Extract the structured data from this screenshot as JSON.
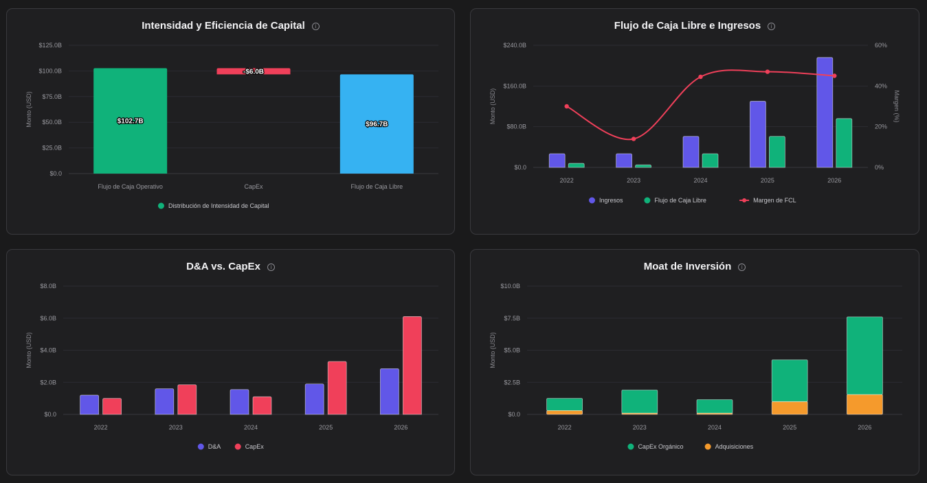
{
  "panels": [
    {
      "title": "Intensidad y Eficiencia de Capital",
      "info_icon": "info-icon"
    },
    {
      "title": "Flujo de Caja Libre e Ingresos",
      "info_icon": "info-icon"
    },
    {
      "title": "D&A vs. CapEx",
      "info_icon": "info-icon"
    },
    {
      "title": "Moat de Inversión",
      "info_icon": "info-icon"
    }
  ],
  "chart_data": [
    {
      "type": "bar",
      "subtype": "waterfall",
      "title": "Intensidad y Eficiencia de Capital",
      "categories": [
        "Flujo de Caja Operativo",
        "CapEx",
        "Flujo de Caja Libre"
      ],
      "values": [
        102.7,
        -6.0,
        96.7
      ],
      "data_labels": [
        "$102.7B",
        "-$6.0B",
        "$96.7B"
      ],
      "series": [
        {
          "name": "Distribución de Intensidad de Capital",
          "colors": [
            "#10b27a",
            "#f0405a",
            "#36b2f2"
          ]
        }
      ],
      "ylabel": "Monto (USD)",
      "ylim": [
        0,
        125
      ],
      "yticks": [
        "$0.0",
        "$25.0B",
        "$50.0B",
        "$75.0B",
        "$100.0B",
        "$125.0B"
      ],
      "grid": true,
      "legend_position": "bottom"
    },
    {
      "type": "bar",
      "title": "Flujo de Caja Libre e Ingresos",
      "categories": [
        "2022",
        "2023",
        "2024",
        "2025",
        "2026"
      ],
      "series": [
        {
          "name": "Ingresos",
          "kind": "bar",
          "axis": "left",
          "color": "#6157e8",
          "values": [
            27,
            27,
            61,
            130,
            216
          ]
        },
        {
          "name": "Flujo de Caja Libre",
          "kind": "bar",
          "axis": "left",
          "color": "#10b27a",
          "values": [
            8,
            5,
            27,
            61,
            96
          ]
        },
        {
          "name": "Margen de FCL",
          "kind": "line",
          "axis": "right",
          "color": "#f0405a",
          "values": [
            30,
            14,
            44.5,
            47,
            45
          ]
        }
      ],
      "ylabel": "Monto (USD)",
      "y2label": "Margen (%)",
      "ylim": [
        0,
        240
      ],
      "y2lim": [
        0,
        60
      ],
      "yticks": [
        "$0.0",
        "$80.0B",
        "$160.0B",
        "$240.0B"
      ],
      "y2ticks": [
        "0%",
        "20%",
        "40%",
        "60%"
      ],
      "grid": true,
      "legend_position": "bottom"
    },
    {
      "type": "bar",
      "title": "D&A vs. CapEx",
      "categories": [
        "2022",
        "2023",
        "2024",
        "2025",
        "2026"
      ],
      "series": [
        {
          "name": "D&A",
          "color": "#6157e8",
          "values": [
            1.2,
            1.6,
            1.55,
            1.9,
            2.85
          ]
        },
        {
          "name": "CapEx",
          "color": "#f0405a",
          "values": [
            1.0,
            1.85,
            1.1,
            3.3,
            6.1
          ]
        }
      ],
      "ylabel": "Monto (USD)",
      "ylim": [
        0,
        8
      ],
      "yticks": [
        "$0.0",
        "$2.0B",
        "$4.0B",
        "$6.0B",
        "$8.0B"
      ],
      "grid": true,
      "legend_position": "bottom"
    },
    {
      "type": "bar",
      "subtype": "stacked",
      "title": "Moat de Inversión",
      "categories": [
        "2022",
        "2023",
        "2024",
        "2025",
        "2026"
      ],
      "series": [
        {
          "name": "CapEx Orgánico",
          "color": "#10b27a",
          "values": [
            0.95,
            1.8,
            1.05,
            3.25,
            6.05
          ]
        },
        {
          "name": "Adquisiciones",
          "color": "#f59a2c",
          "values": [
            0.3,
            0.1,
            0.1,
            1.0,
            1.55
          ]
        }
      ],
      "ylabel": "Monto (USD)",
      "ylim": [
        0,
        10
      ],
      "yticks": [
        "$0.0",
        "$2.5B",
        "$5.0B",
        "$7.5B",
        "$10.0B"
      ],
      "grid": true,
      "legend_position": "bottom"
    }
  ]
}
